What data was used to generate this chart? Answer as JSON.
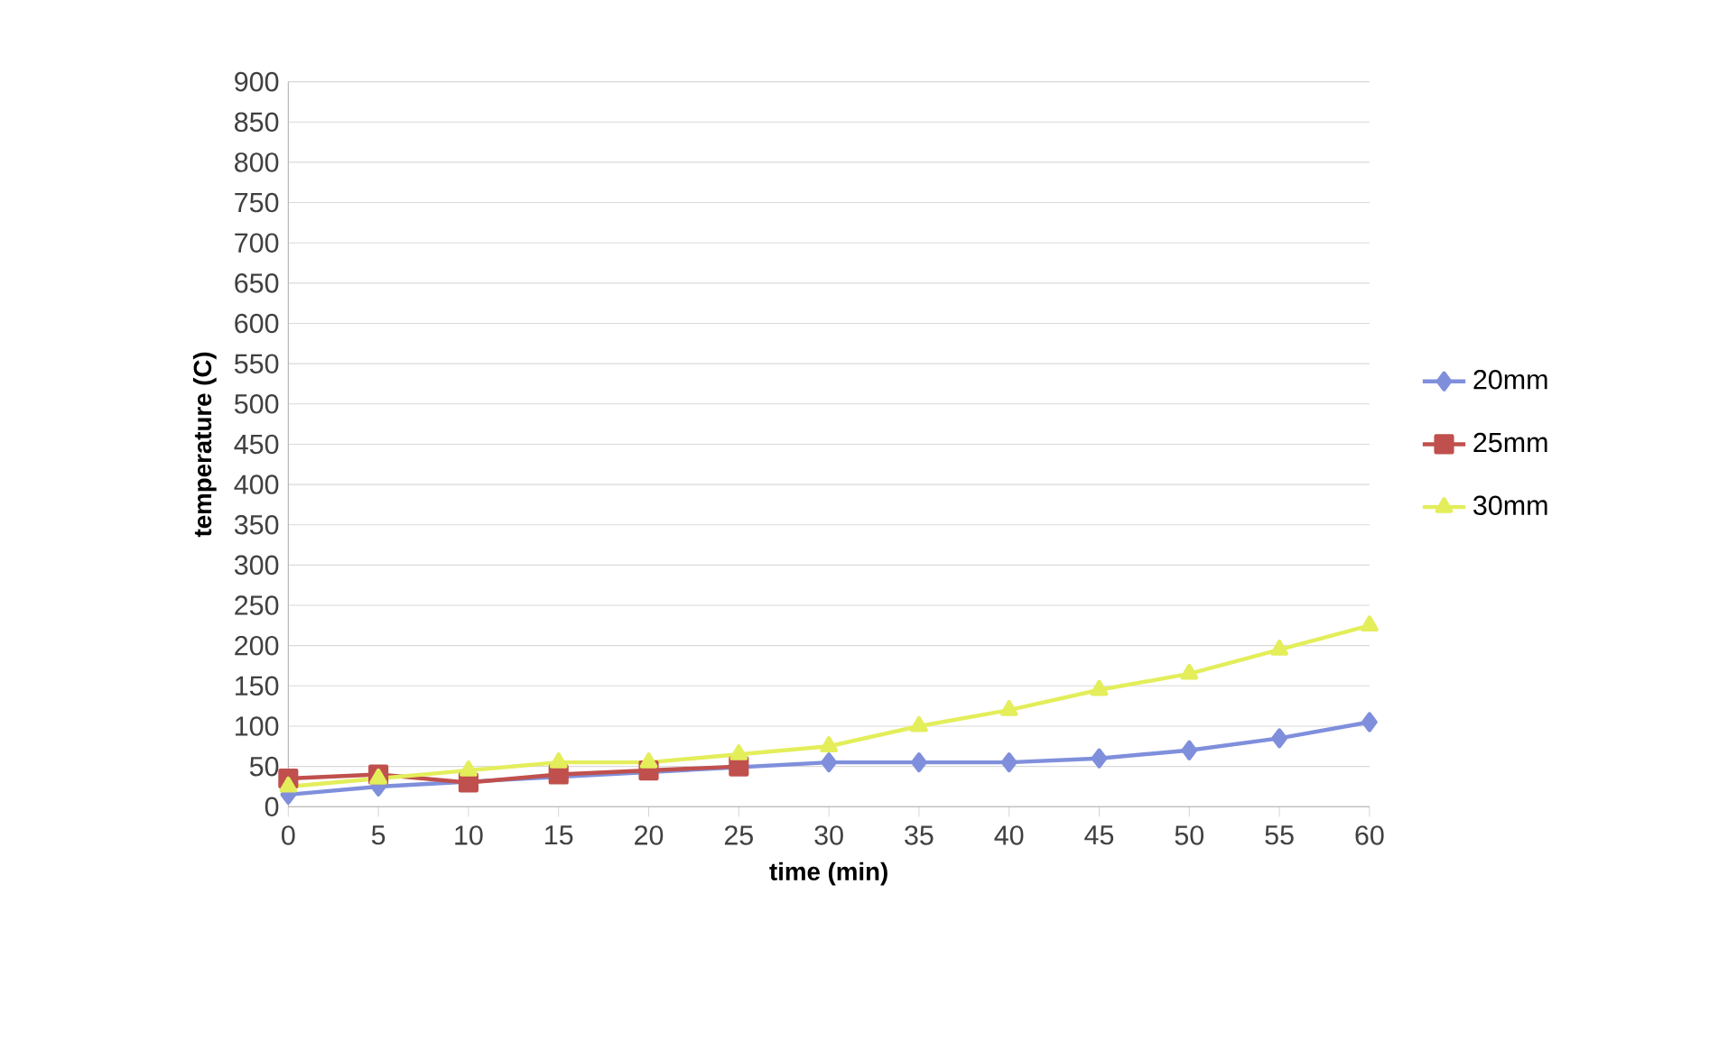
{
  "chart_data": {
    "type": "line",
    "xlabel": "time (min)",
    "ylabel": "temperature (C)",
    "x": [
      0,
      5,
      10,
      15,
      20,
      25,
      30,
      35,
      40,
      45,
      50,
      55,
      60
    ],
    "xlim": [
      0,
      60
    ],
    "xticks": [
      0,
      5,
      10,
      15,
      20,
      25,
      30,
      35,
      40,
      45,
      50,
      55,
      60
    ],
    "ylim": [
      0,
      900
    ],
    "yticks": [
      0,
      50,
      100,
      150,
      200,
      250,
      300,
      350,
      400,
      450,
      500,
      550,
      600,
      650,
      700,
      750,
      800,
      850,
      900
    ],
    "grid": "y",
    "legend": "right",
    "series": [
      {
        "name": "20mm",
        "color": "#7f8fdc",
        "marker": "diamond",
        "values": [
          15,
          25,
          null,
          null,
          null,
          null,
          55,
          55,
          55,
          60,
          70,
          85,
          105
        ]
      },
      {
        "name": "25mm",
        "color": "#c0504d",
        "marker": "square",
        "x": [
          0,
          5,
          10,
          15,
          20,
          25
        ],
        "values": [
          35,
          40,
          30,
          40,
          45,
          50
        ]
      },
      {
        "name": "30mm",
        "color": "#e3ee5a",
        "marker": "triangle",
        "values": [
          25,
          35,
          45,
          55,
          55,
          65,
          75,
          100,
          120,
          145,
          165,
          195,
          225
        ]
      }
    ]
  }
}
